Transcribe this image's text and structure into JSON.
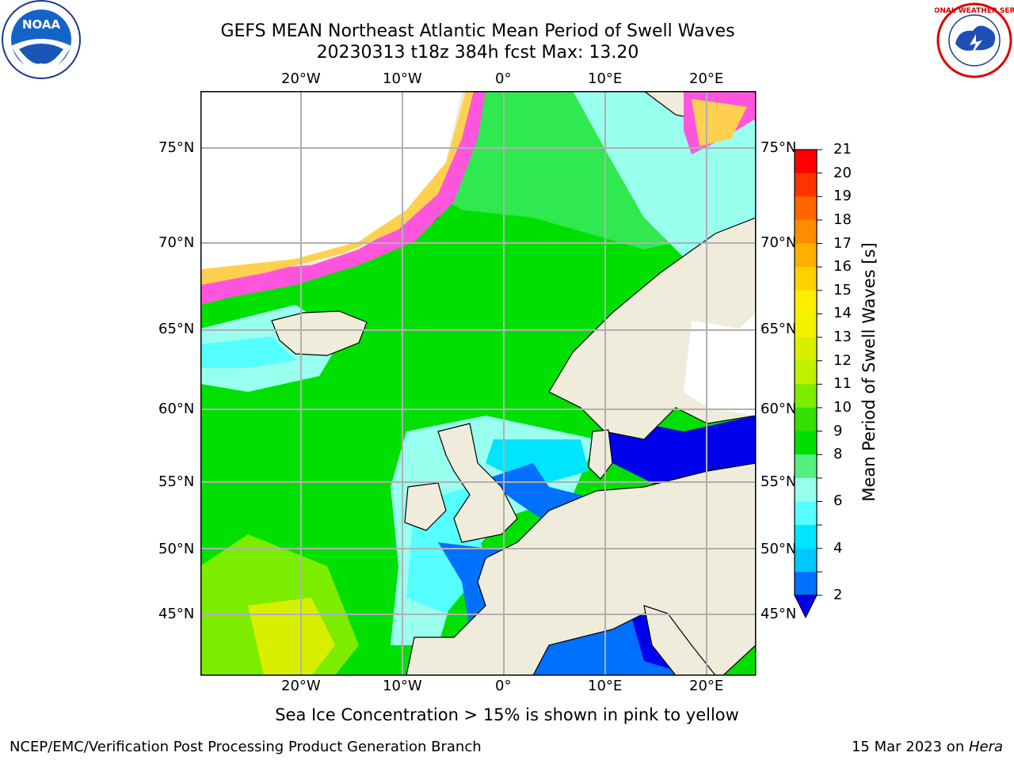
{
  "header": {
    "title_line1": "GEFS MEAN Northeast Atlantic Mean Period of Swell Waves",
    "title_line2": "20230313 t18z 384h fcst   Max: 13.20"
  },
  "logos": {
    "left": "NOAA",
    "right": "NATIONAL WEATHER SERVICE"
  },
  "map": {
    "lon_top": [
      "20°W",
      "10°W",
      "0°",
      "10°E",
      "20°E"
    ],
    "lon_bottom": [
      "20°W",
      "10°W",
      "0°",
      "10°E",
      "20°E"
    ],
    "lat_left": [
      "75°N",
      "70°N",
      "65°N",
      "60°N",
      "55°N",
      "50°N",
      "45°N"
    ],
    "lat_right": [
      "75°N",
      "70°N",
      "65°N",
      "60°N",
      "55°N",
      "50°N",
      "45°N"
    ]
  },
  "colorbar": {
    "label": "Mean Period of Swell Waves [s]",
    "ticks": [
      "21",
      "20",
      "19",
      "18",
      "17",
      "16",
      "15",
      "14",
      "13",
      "12",
      "11",
      "10",
      "9",
      "8",
      "7",
      "6",
      "5",
      "4",
      "3",
      "2"
    ],
    "tick_labels_shown": [
      "21",
      "20",
      "19",
      "18",
      "17",
      "16",
      "15",
      "14",
      "13",
      "12",
      "11",
      "10",
      "9",
      "8",
      "6",
      "4",
      "2"
    ],
    "colors": [
      "#ff0000",
      "#ff3300",
      "#ff6600",
      "#ff8c00",
      "#ffb000",
      "#ffd000",
      "#ffee00",
      "#f2f200",
      "#d8f000",
      "#bff000",
      "#7ded00",
      "#33e000",
      "#00e000",
      "#55f080",
      "#99ffee",
      "#55ffff",
      "#00e5ff",
      "#00c8ff",
      "#0070ff",
      "#0000ee"
    ]
  },
  "note": "Sea Ice Concentration > 15% is shown in pink to yellow",
  "footer": {
    "left": "NCEP/EMC/Verification Post Processing Product Generation Branch",
    "right_date": "15 Mar 2023 on ",
    "right_host": "Hera"
  }
}
